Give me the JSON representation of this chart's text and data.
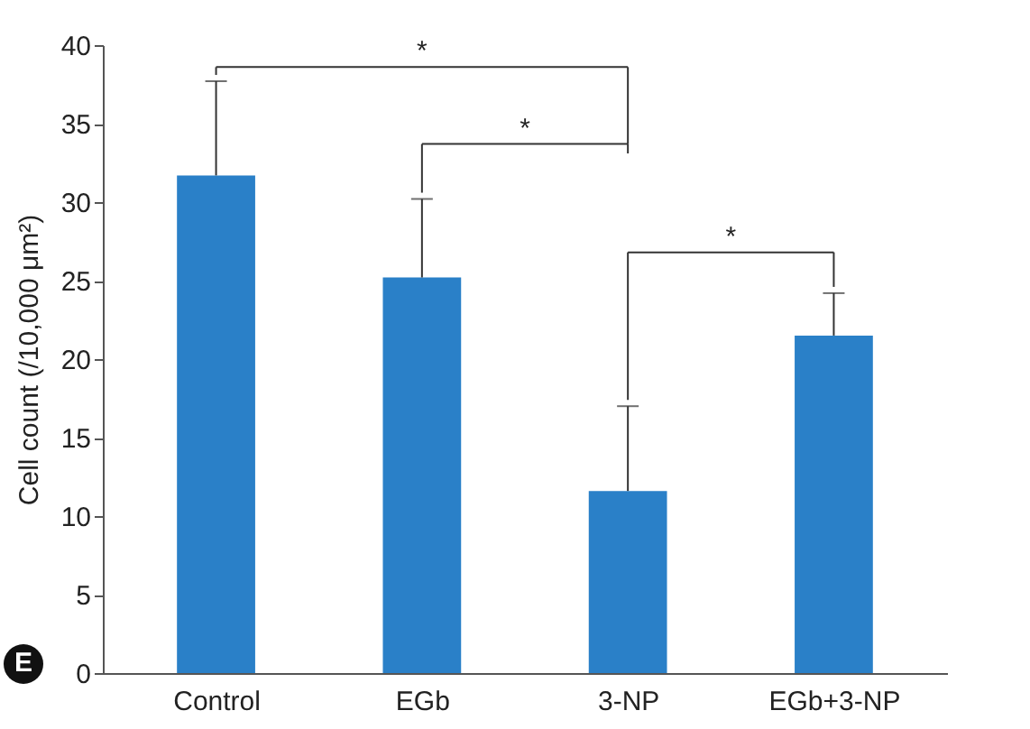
{
  "chart_data": {
    "type": "bar",
    "ylabel": "Cell count (/10,000 μm²)",
    "categories": [
      "Control",
      "EGb",
      "3-NP",
      "EGb+3-NP"
    ],
    "values": [
      31.7,
      25.2,
      11.6,
      21.5
    ],
    "errors": [
      [
        31.7,
        37.7
      ],
      [
        25.2,
        30.2
      ],
      [
        11.6,
        17.0
      ],
      [
        21.5,
        24.2
      ]
    ],
    "color": "#2a80c8",
    "ylim": [
      0,
      40
    ],
    "yticks": [
      0,
      5,
      10,
      15,
      20,
      25,
      30,
      35,
      40
    ],
    "grid": false,
    "annotations": [
      "*",
      "*",
      "*",
      "E"
    ]
  }
}
